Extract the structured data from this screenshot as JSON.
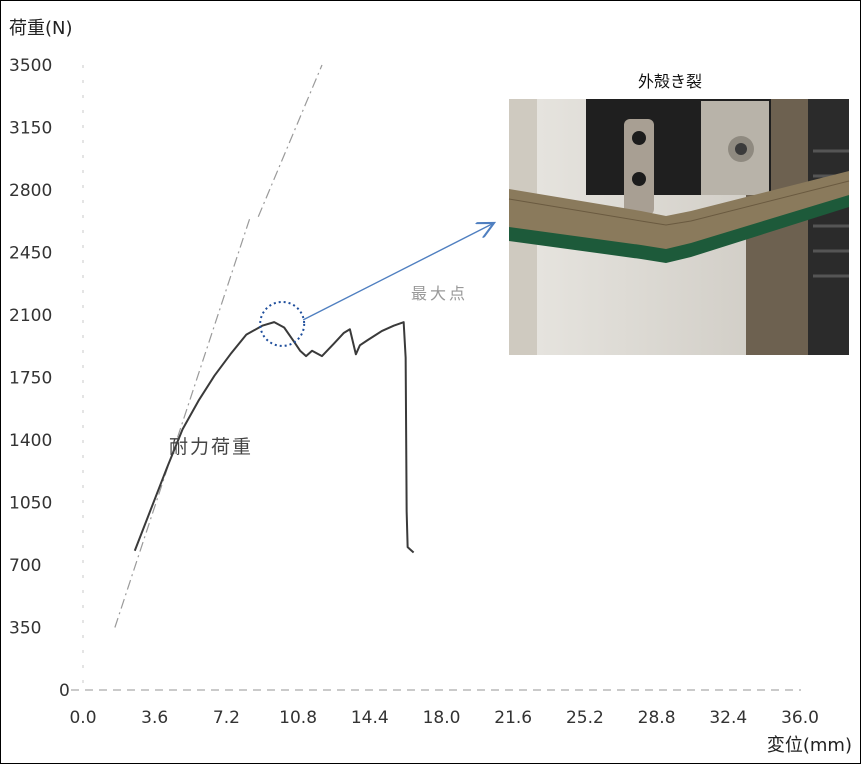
{
  "chart_data": {
    "type": "line",
    "title": "",
    "ylabel": "荷重(N)",
    "xlabel": "変位(mm)",
    "x_ticks": [
      "0.0",
      "3.6",
      "7.2",
      "10.8",
      "14.4",
      "18.0",
      "21.6",
      "25.2",
      "28.8",
      "32.4",
      "36.0"
    ],
    "y_ticks": [
      "0",
      "350",
      "700",
      "1050",
      "1400",
      "1750",
      "2100",
      "2450",
      "2800",
      "3150",
      "3500"
    ],
    "xlim": [
      0,
      36
    ],
    "ylim": [
      0,
      3500
    ],
    "grid": false,
    "legend": "none",
    "series": [
      {
        "x": [
          2.6,
          3.4,
          4.2,
          5.0,
          5.8,
          6.6,
          7.4,
          8.2,
          9.0,
          9.6,
          10.1,
          10.6,
          10.9,
          11.2,
          11.5,
          12.0,
          12.6,
          13.1,
          13.4,
          13.7,
          13.9,
          14.3,
          15.0,
          15.6,
          16.1,
          16.2,
          16.25,
          16.3,
          16.5,
          16.6
        ],
        "y": [
          780,
          1010,
          1240,
          1460,
          1620,
          1760,
          1880,
          1990,
          2040,
          2060,
          2030,
          1950,
          1900,
          1870,
          1900,
          1870,
          1940,
          2000,
          2020,
          1880,
          1930,
          1960,
          2010,
          2040,
          2060,
          1860,
          1000,
          800,
          780,
          770
        ]
      }
    ],
    "reference_lines": [
      {
        "x": [
          1.6,
          8.4
        ],
        "y": [
          350,
          2650
        ]
      },
      {
        "x": [
          8.8,
          12.0
        ],
        "y": [
          2650,
          3500
        ]
      }
    ],
    "annotations": {
      "proof_load": "耐力荷重",
      "max_point": "最大点"
    },
    "highlight": {
      "x": 10.0,
      "y": 2050
    }
  },
  "photo": {
    "caption": "外殻き裂"
  },
  "colors": {
    "curve": "#3a3a3a",
    "reference": "#9a9a9a",
    "arrow": "#4f7fc0",
    "circle": "#1f4e9c",
    "photo_bg": "#d9d6cf",
    "fixture": "#2a2a2a",
    "plate": "#8a7a5c",
    "plate_green": "#1d5a3a"
  }
}
